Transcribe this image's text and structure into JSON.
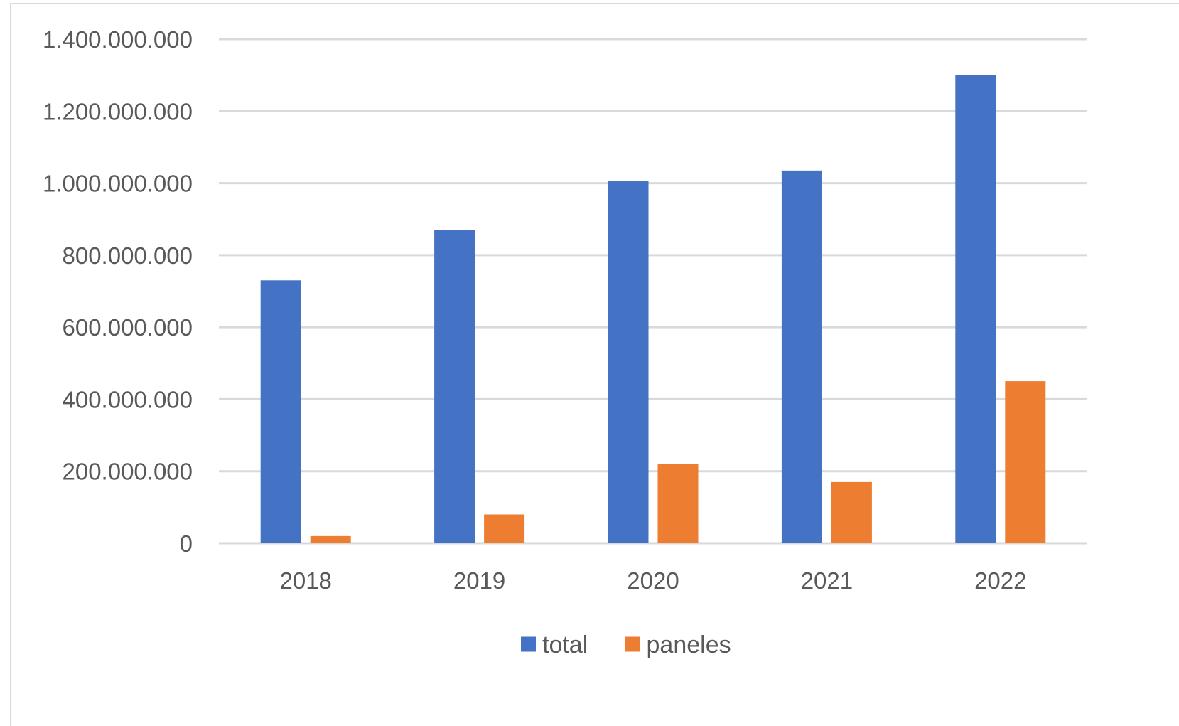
{
  "chart_data": {
    "type": "bar",
    "title": "",
    "xlabel": "",
    "ylabel": "",
    "categories": [
      "2018",
      "2019",
      "2020",
      "2021",
      "2022"
    ],
    "series": [
      {
        "name": "total",
        "color": "#4472c4",
        "values": [
          730000000,
          870000000,
          1005000000,
          1035000000,
          1300000000
        ]
      },
      {
        "name": "paneles",
        "color": "#ed7d31",
        "values": [
          20000000,
          80000000,
          220000000,
          170000000,
          450000000
        ]
      }
    ],
    "ylim": [
      0,
      1400000000
    ],
    "y_ticks": [
      {
        "value": 0,
        "label": "0"
      },
      {
        "value": 200000000,
        "label": "200.000.000"
      },
      {
        "value": 400000000,
        "label": "400.000.000"
      },
      {
        "value": 600000000,
        "label": "600.000.000"
      },
      {
        "value": 800000000,
        "label": "800.000.000"
      },
      {
        "value": 1000000000,
        "label": "1.000.000.000"
      },
      {
        "value": 1200000000,
        "label": "1.200.000.000"
      },
      {
        "value": 1400000000,
        "label": "1.400.000.000"
      }
    ],
    "grid": true,
    "legend_position": "bottom",
    "gridline_color": "#d9d9d9"
  }
}
